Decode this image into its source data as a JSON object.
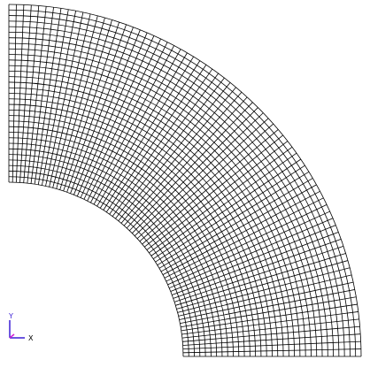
{
  "viewport": {
    "background": "#ffffff",
    "mesh": {
      "shape": "quarter-annulus",
      "radial_divisions": 32,
      "circumferential_divisions": 74,
      "line_color": "#000000"
    },
    "triad": {
      "y_label": "Y",
      "x_label": "X",
      "y_color": "#3b1fd6",
      "x_color": "#3b1fd6",
      "z_color": "#d21bd2"
    }
  }
}
